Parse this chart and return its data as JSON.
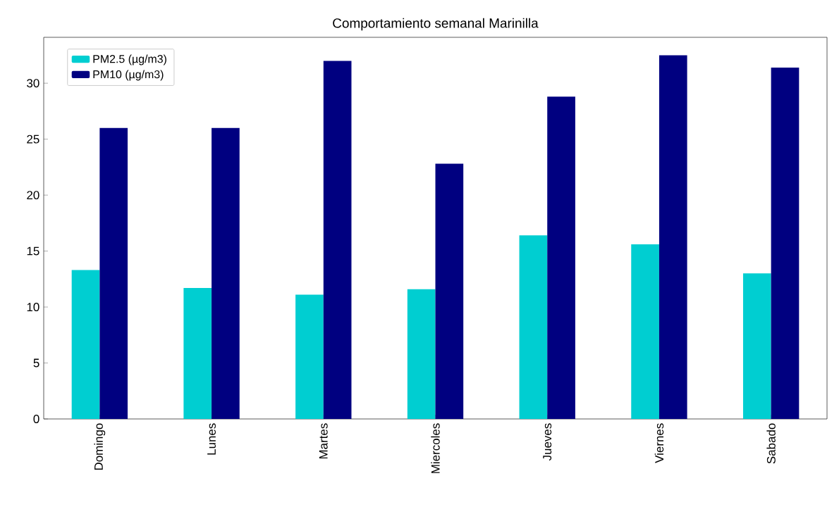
{
  "chart_data": {
    "type": "bar",
    "title": "Comportamiento semanal Marinilla",
    "categories": [
      "Domingo",
      "Lunes",
      "Martes",
      "Miercoles",
      "Jueves",
      "Viernes",
      "Sabado"
    ],
    "series": [
      {
        "name": "PM2.5 (µg/m3)",
        "color": "#00ced1",
        "values": [
          13.3,
          11.7,
          11.1,
          11.6,
          16.4,
          15.6,
          13.0
        ]
      },
      {
        "name": "PM10 (µg/m3)",
        "color": "#000080",
        "values": [
          26.0,
          26.0,
          32.0,
          22.8,
          28.8,
          32.5,
          31.4
        ]
      }
    ],
    "ylim": [
      0,
      34.1
    ],
    "yticks": [
      0,
      5,
      10,
      15,
      20,
      25,
      30
    ],
    "legend": "top left"
  }
}
